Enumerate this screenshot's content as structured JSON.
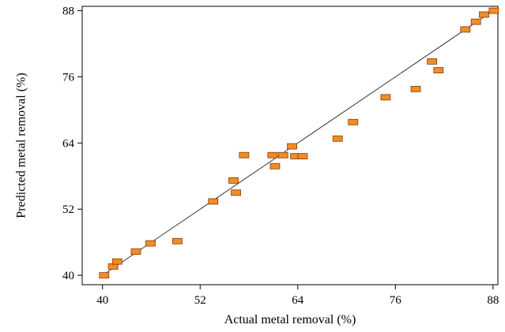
{
  "chart_data": {
    "type": "scatter",
    "xlabel": "Actual metal removal (%)",
    "ylabel": "Predicted metal removal (%)",
    "xlim": [
      37.5,
      88.6
    ],
    "ylim": [
      38.3,
      88.8
    ],
    "xticks": [
      40,
      52,
      64,
      76,
      88
    ],
    "yticks": [
      40,
      52,
      64,
      76,
      88
    ],
    "grid": false,
    "legend": "none",
    "fit_line": {
      "from": [
        40,
        40
      ],
      "to": [
        88,
        88
      ]
    },
    "colors": {
      "marker_fill": "#f28c28",
      "marker_stroke": "#8a3a00",
      "line": "#333333",
      "axis": "#000000"
    },
    "points": [
      {
        "x": 40.2,
        "y": 40.0
      },
      {
        "x": 41.3,
        "y": 41.6
      },
      {
        "x": 41.8,
        "y": 42.5
      },
      {
        "x": 44.1,
        "y": 44.3
      },
      {
        "x": 45.9,
        "y": 45.8
      },
      {
        "x": 49.2,
        "y": 46.2
      },
      {
        "x": 53.6,
        "y": 53.4
      },
      {
        "x": 56.1,
        "y": 57.2
      },
      {
        "x": 56.4,
        "y": 55.0
      },
      {
        "x": 57.4,
        "y": 61.8
      },
      {
        "x": 60.9,
        "y": 61.8
      },
      {
        "x": 61.2,
        "y": 59.8
      },
      {
        "x": 62.2,
        "y": 61.8
      },
      {
        "x": 63.3,
        "y": 63.4
      },
      {
        "x": 63.7,
        "y": 61.6
      },
      {
        "x": 64.6,
        "y": 61.6
      },
      {
        "x": 68.9,
        "y": 64.8
      },
      {
        "x": 70.8,
        "y": 67.8
      },
      {
        "x": 74.8,
        "y": 72.3
      },
      {
        "x": 78.5,
        "y": 73.8
      },
      {
        "x": 80.5,
        "y": 78.8
      },
      {
        "x": 81.3,
        "y": 77.2
      },
      {
        "x": 84.6,
        "y": 84.6
      },
      {
        "x": 85.9,
        "y": 86.0
      },
      {
        "x": 86.9,
        "y": 87.3
      },
      {
        "x": 88.1,
        "y": 88.0
      }
    ]
  }
}
